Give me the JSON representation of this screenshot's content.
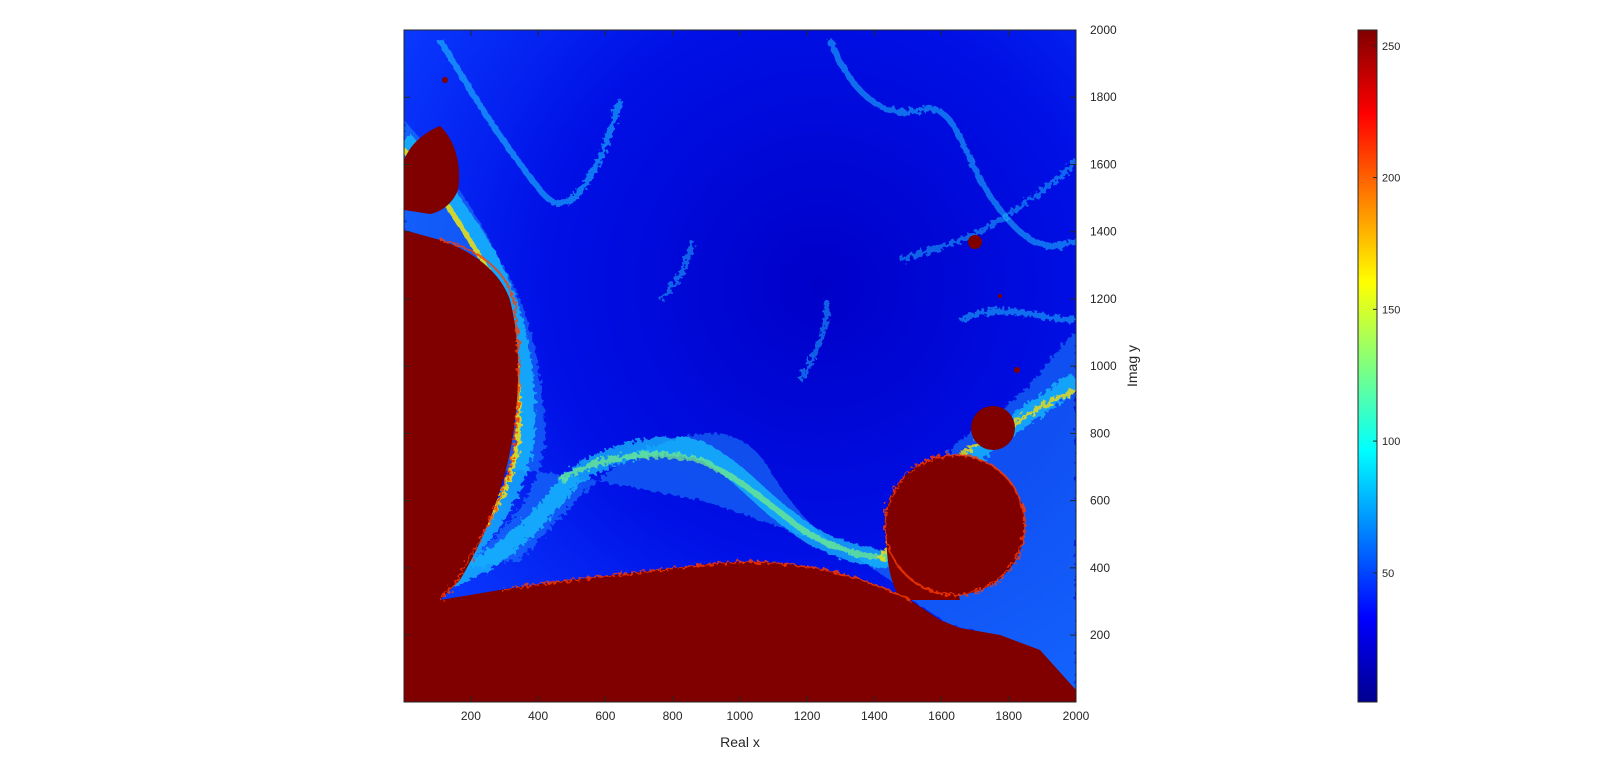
{
  "chart_data": [
    {
      "type": "heatmap",
      "title": "",
      "xlabel": "Real x",
      "ylabel": "Imag y",
      "xlim": [
        1,
        2000
      ],
      "ylim": [
        1,
        2000
      ],
      "x_ticks": [
        200,
        400,
        600,
        800,
        1000,
        1200,
        1400,
        1600,
        1800,
        2000
      ],
      "y_ticks": [
        200,
        400,
        600,
        800,
        1000,
        1200,
        1400,
        1600,
        1800,
        2000
      ],
      "y_axis_location": "right",
      "colormap": "jet",
      "color_limits": [
        1,
        256
      ],
      "saturated_color": "#800000",
      "background_color": "#0000ff"
    },
    {
      "type": "colorbar",
      "ticks": [
        50,
        100,
        150,
        200,
        250
      ],
      "limits": [
        1,
        256
      ],
      "colormap": "jet"
    }
  ]
}
